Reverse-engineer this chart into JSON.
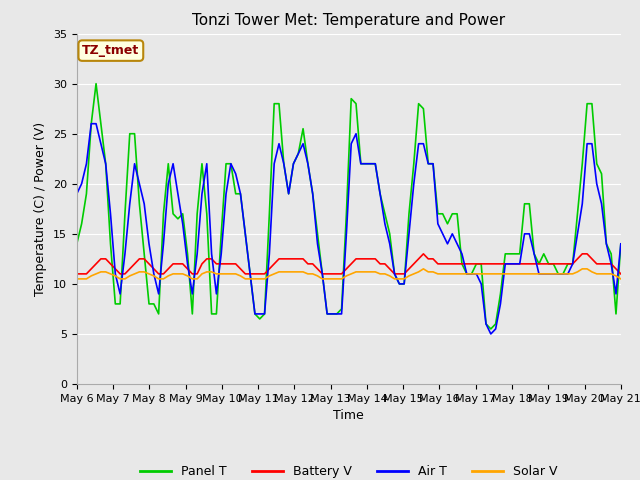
{
  "title": "Tonzi Tower Met: Temperature and Power",
  "xlabel": "Time",
  "ylabel": "Temperature (C) / Power (V)",
  "ylim": [
    0,
    35
  ],
  "yticks": [
    0,
    5,
    10,
    15,
    20,
    25,
    30,
    35
  ],
  "x_labels": [
    "May 6",
    "May 7",
    "May 8",
    "May 9",
    "May 10",
    "May 11",
    "May 12",
    "May 13",
    "May 14",
    "May 15",
    "May 16",
    "May 17",
    "May 18",
    "May 19",
    "May 20",
    "May 21"
  ],
  "annotation_text": "TZ_tmet",
  "annotation_color": "#8B0000",
  "annotation_bg": "#FFFFE0",
  "annotation_border": "#B8860B",
  "legend_entries": [
    "Panel T",
    "Battery V",
    "Air T",
    "Solar V"
  ],
  "legend_colors": [
    "#00CC00",
    "#FF0000",
    "#0000FF",
    "#FFA500"
  ],
  "panel_t": [
    14,
    16,
    19,
    26,
    30,
    26,
    22,
    14,
    8,
    8,
    17,
    25,
    25,
    18,
    13,
    8,
    8,
    7,
    17,
    22,
    17,
    16.5,
    17,
    13,
    7,
    17,
    22,
    17,
    7,
    7,
    15,
    22,
    22,
    19,
    19,
    15,
    11,
    7,
    6.5,
    7,
    17,
    28,
    28,
    22,
    19,
    22,
    23,
    25.5,
    22,
    19,
    15,
    11,
    7,
    7,
    7,
    7.5,
    17,
    28.5,
    28,
    22,
    22,
    22,
    22,
    19,
    17,
    15,
    11,
    10,
    10,
    17,
    22,
    28,
    27.5,
    22,
    22,
    17,
    17,
    16,
    17,
    17,
    12,
    11,
    11,
    12,
    12,
    6,
    5.5,
    6,
    9,
    13,
    13,
    13,
    13,
    18,
    18,
    13,
    12,
    13,
    12,
    12,
    11,
    11,
    12,
    12,
    17,
    22,
    28,
    28,
    22,
    21,
    14,
    13,
    7,
    14
  ],
  "battery_v": [
    11,
    11,
    11,
    11.5,
    12,
    12.5,
    12.5,
    12,
    11.5,
    11,
    11,
    11.5,
    12,
    12.5,
    12.5,
    12,
    11.5,
    11,
    11,
    11.5,
    12,
    12,
    12,
    11.5,
    11,
    11,
    12,
    12.5,
    12.5,
    12,
    12,
    12,
    12,
    12,
    11.5,
    11,
    11,
    11,
    11,
    11,
    11.5,
    12,
    12.5,
    12.5,
    12.5,
    12.5,
    12.5,
    12.5,
    12,
    12,
    11.5,
    11,
    11,
    11,
    11,
    11,
    11.5,
    12,
    12.5,
    12.5,
    12.5,
    12.5,
    12.5,
    12,
    12,
    11.5,
    11,
    11,
    11,
    11.5,
    12,
    12.5,
    13,
    12.5,
    12.5,
    12,
    12,
    12,
    12,
    12,
    12,
    12,
    12,
    12,
    12,
    12,
    12,
    12,
    12,
    12,
    12,
    12,
    12,
    12,
    12,
    12,
    12,
    12,
    12,
    12,
    12,
    12,
    12,
    12,
    12.5,
    13,
    13,
    12.5,
    12,
    12,
    12,
    12,
    11.5,
    11
  ],
  "air_t": [
    19,
    20,
    22,
    26,
    26,
    24,
    22,
    17,
    11,
    9,
    13,
    18,
    22,
    20,
    18,
    14,
    11,
    9,
    14,
    20,
    22,
    19,
    16,
    12,
    9,
    13,
    19,
    22,
    13,
    9,
    13,
    19,
    22,
    21,
    19,
    15,
    11,
    7,
    7,
    7,
    13,
    22,
    24,
    22,
    19,
    22,
    23,
    24,
    22,
    19,
    14,
    11,
    7,
    7,
    7,
    7,
    15,
    24,
    25,
    22,
    22,
    22,
    22,
    19,
    16,
    14,
    11,
    10,
    10,
    15,
    20,
    24,
    24,
    22,
    22,
    16,
    15,
    14,
    15,
    14,
    13,
    11,
    11,
    11,
    10,
    6,
    5,
    5.5,
    8,
    12,
    12,
    12,
    12,
    15,
    15,
    13,
    11,
    11,
    11,
    11,
    11,
    11,
    11,
    12,
    15,
    18,
    24,
    24,
    20,
    18,
    14,
    12,
    9,
    14
  ],
  "solar_v": [
    10.5,
    10.5,
    10.5,
    10.8,
    11,
    11.2,
    11.2,
    11,
    10.8,
    10.5,
    10.5,
    10.8,
    11,
    11.2,
    11.2,
    11,
    10.8,
    10.5,
    10.5,
    10.8,
    11,
    11,
    11,
    10.8,
    10.5,
    10.5,
    11,
    11.2,
    11.2,
    11,
    11,
    11,
    11,
    11,
    10.8,
    10.5,
    10.5,
    10.5,
    10.5,
    10.5,
    10.8,
    11,
    11.2,
    11.2,
    11.2,
    11.2,
    11.2,
    11.2,
    11,
    11,
    10.8,
    10.5,
    10.5,
    10.5,
    10.5,
    10.5,
    10.8,
    11,
    11.2,
    11.2,
    11.2,
    11.2,
    11.2,
    11,
    11,
    10.8,
    10.5,
    10.5,
    10.5,
    10.8,
    11,
    11.2,
    11.5,
    11.2,
    11.2,
    11,
    11,
    11,
    11,
    11,
    11,
    11,
    11,
    11,
    11,
    11,
    11,
    11,
    11,
    11,
    11,
    11,
    11,
    11,
    11,
    11,
    11,
    11,
    11,
    11,
    11,
    11,
    11,
    11,
    11.2,
    11.5,
    11.5,
    11.2,
    11,
    11,
    11,
    11,
    10.8,
    10.5
  ],
  "bg_color": "#E8E8E8",
  "plot_bg": "#E8E8E8",
  "grid_color": "#FFFFFF",
  "title_fontsize": 11,
  "axis_label_fontsize": 9,
  "tick_fontsize": 8
}
